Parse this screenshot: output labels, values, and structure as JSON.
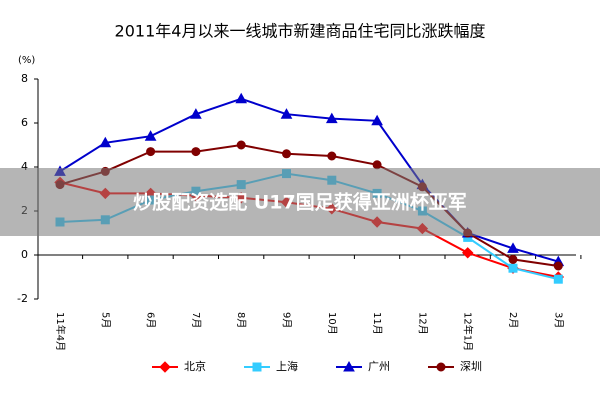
{
  "chart_data": {
    "type": "line",
    "title": "2011年4月以来一线城市新建商品住宅同比涨跌幅度",
    "y_label": "(%)",
    "categories": [
      "11年4月",
      "5月",
      "6月",
      "7月",
      "8月",
      "9月",
      "10月",
      "11月",
      "12月",
      "12年1月",
      "2月",
      "3月"
    ],
    "series": [
      {
        "name": "北京",
        "color": "#ff0000",
        "marker": "diamond",
        "values": [
          3.3,
          2.8,
          2.8,
          2.7,
          2.6,
          2.4,
          2.1,
          1.5,
          1.2,
          0.1,
          -0.6,
          -1.0
        ]
      },
      {
        "name": "上海",
        "color": "#33ccff",
        "marker": "square",
        "values": [
          1.5,
          1.6,
          2.5,
          2.9,
          3.2,
          3.7,
          3.4,
          2.8,
          2.0,
          0.8,
          -0.6,
          -1.1
        ]
      },
      {
        "name": "广州",
        "color": "#0000cc",
        "marker": "triangle",
        "values": [
          3.8,
          5.1,
          5.4,
          6.4,
          7.1,
          6.4,
          6.2,
          6.1,
          3.2,
          1.0,
          0.3,
          -0.3
        ]
      },
      {
        "name": "深圳",
        "color": "#800000",
        "marker": "circle",
        "values": [
          3.2,
          3.8,
          4.7,
          4.7,
          5.0,
          4.6,
          4.5,
          4.1,
          3.1,
          1.0,
          -0.2,
          -0.5
        ]
      }
    ],
    "ylim": [
      -2,
      8
    ],
    "yticks": [
      -2,
      0,
      2,
      4,
      6,
      8
    ],
    "legend": "bottom"
  },
  "watermark": "炒股配资选配 U17国足获得亚洲杯亚军"
}
